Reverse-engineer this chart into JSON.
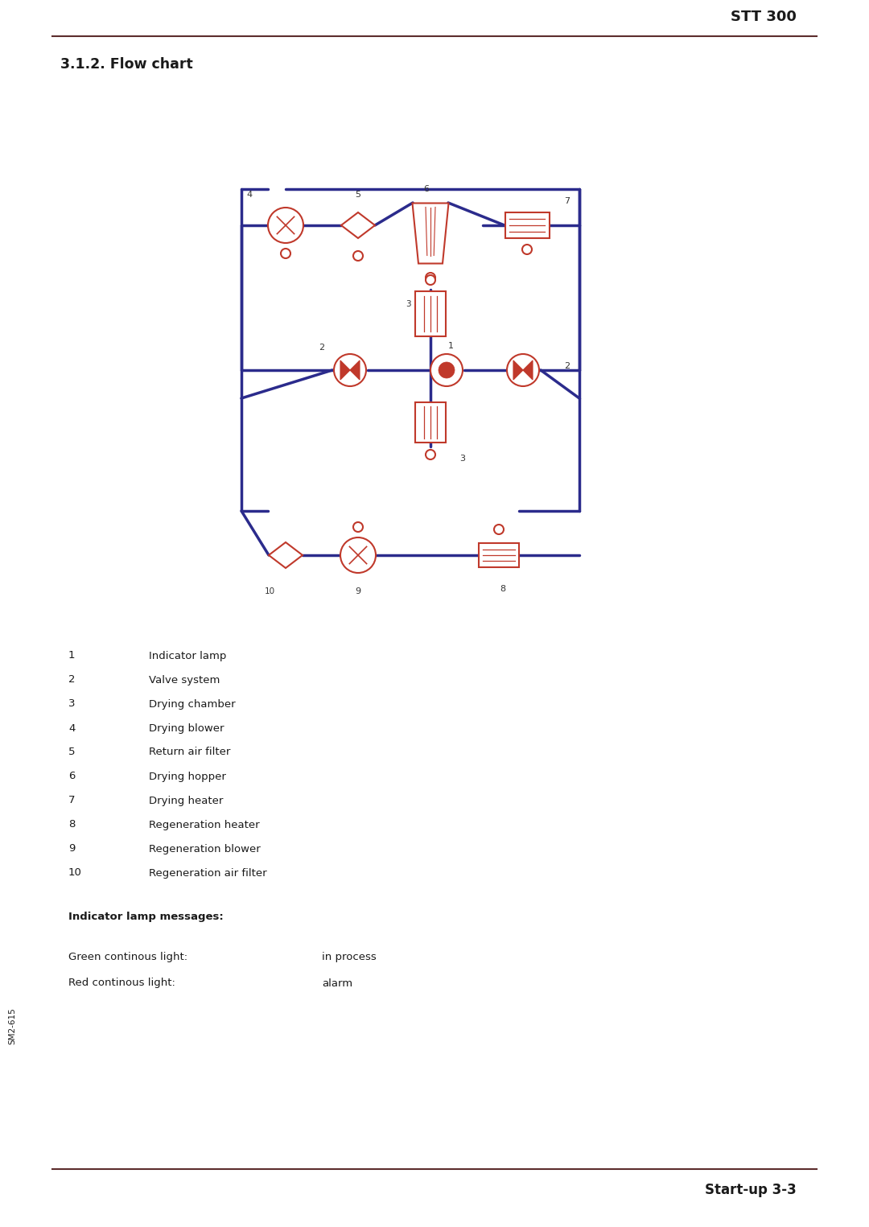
{
  "title_header": "STT 300",
  "section_title": "3.1.2. Flow chart",
  "footer_text": "Start-up 3-3",
  "sidebar_text": "SM2-615",
  "header_line_color": "#5C2D2D",
  "footer_line_color": "#5C2D2D",
  "bg_color": "#FFFFFF",
  "text_color": "#1a1a1a",
  "flow_line_color": "#2B2B8C",
  "component_color": "#C0392B",
  "component_outline": "#C0392B",
  "legend_items": [
    [
      "1",
      "Indicator lamp"
    ],
    [
      "2",
      "Valve system"
    ],
    [
      "3",
      "Drying chamber"
    ],
    [
      "4",
      "Drying blower"
    ],
    [
      "5",
      "Return air filter"
    ],
    [
      "6",
      "Drying hopper"
    ],
    [
      "7",
      "Drying heater"
    ],
    [
      "8",
      "Regeneration heater"
    ],
    [
      "9",
      "Regeneration blower"
    ],
    [
      "10",
      "Regeneration air filter"
    ]
  ],
  "indicator_title": "Indicator lamp messages:",
  "indicator_items": [
    [
      "Green continous light:",
      "in process"
    ],
    [
      "Red continous light:",
      "alarm"
    ]
  ]
}
